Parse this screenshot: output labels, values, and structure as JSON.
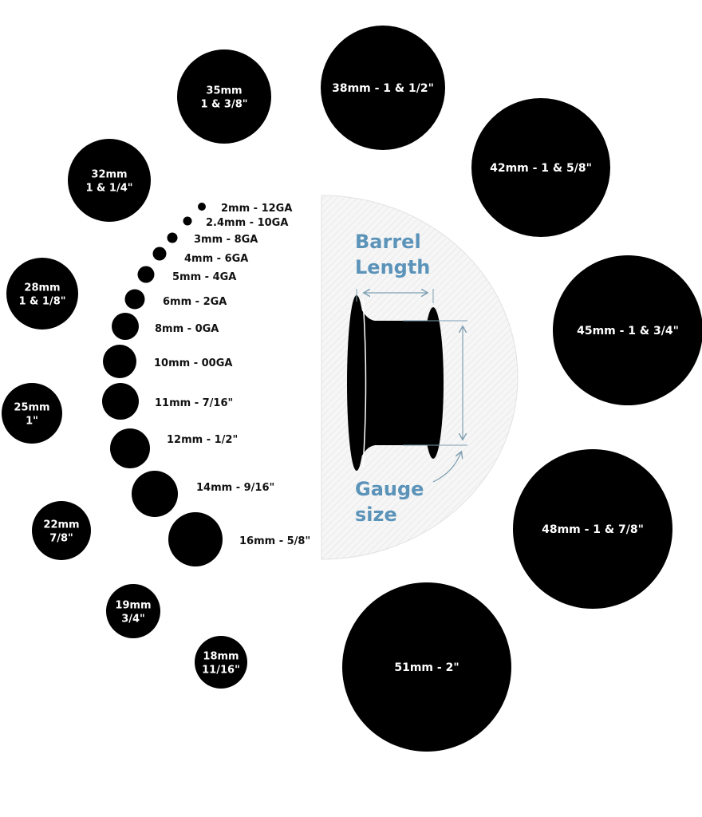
{
  "colors": {
    "circle": "#000000",
    "label_on_circle": "#ffffff",
    "label_text": "#111111",
    "accent": "#5b93b9",
    "guide": "#7e9fb2",
    "panel": "#f3f3f3"
  },
  "small_sizes": [
    {
      "label": "2mm - 12GA"
    },
    {
      "label": "2.4mm - 10GA"
    },
    {
      "label": "3mm - 8GA"
    },
    {
      "label": "4mm - 6GA"
    },
    {
      "label": "5mm - 4GA"
    },
    {
      "label": "6mm - 2GA"
    },
    {
      "label": "8mm - 0GA"
    },
    {
      "label": "10mm - 00GA"
    },
    {
      "label": "11mm - 7/16\""
    },
    {
      "label": "12mm - 1/2\""
    },
    {
      "label": "14mm - 9/16\""
    },
    {
      "label": "16mm - 5/8\""
    }
  ],
  "large_sizes": [
    {
      "lines": [
        "18mm",
        "11/16\""
      ]
    },
    {
      "lines": [
        "19mm",
        "3/4\""
      ]
    },
    {
      "lines": [
        "22mm",
        "7/8\""
      ]
    },
    {
      "lines": [
        "25mm",
        "1\""
      ]
    },
    {
      "lines": [
        "28mm",
        "1 & 1/8\""
      ]
    },
    {
      "lines": [
        "32mm",
        "1 & 1/4\""
      ]
    },
    {
      "lines": [
        "35mm",
        "1 & 3/8\""
      ]
    },
    {
      "lines": [
        "38mm - 1 & 1/2\""
      ]
    },
    {
      "lines": [
        "42mm - 1 & 5/8\""
      ]
    },
    {
      "lines": [
        "45mm - 1 & 3/4\""
      ]
    },
    {
      "lines": [
        "48mm - 1 & 7/8\""
      ]
    },
    {
      "lines": [
        "51mm - 2\""
      ]
    }
  ],
  "plug_diagram": {
    "barrel_label": [
      "Barrel",
      "Length"
    ],
    "gauge_label": [
      "Gauge",
      "size"
    ]
  }
}
